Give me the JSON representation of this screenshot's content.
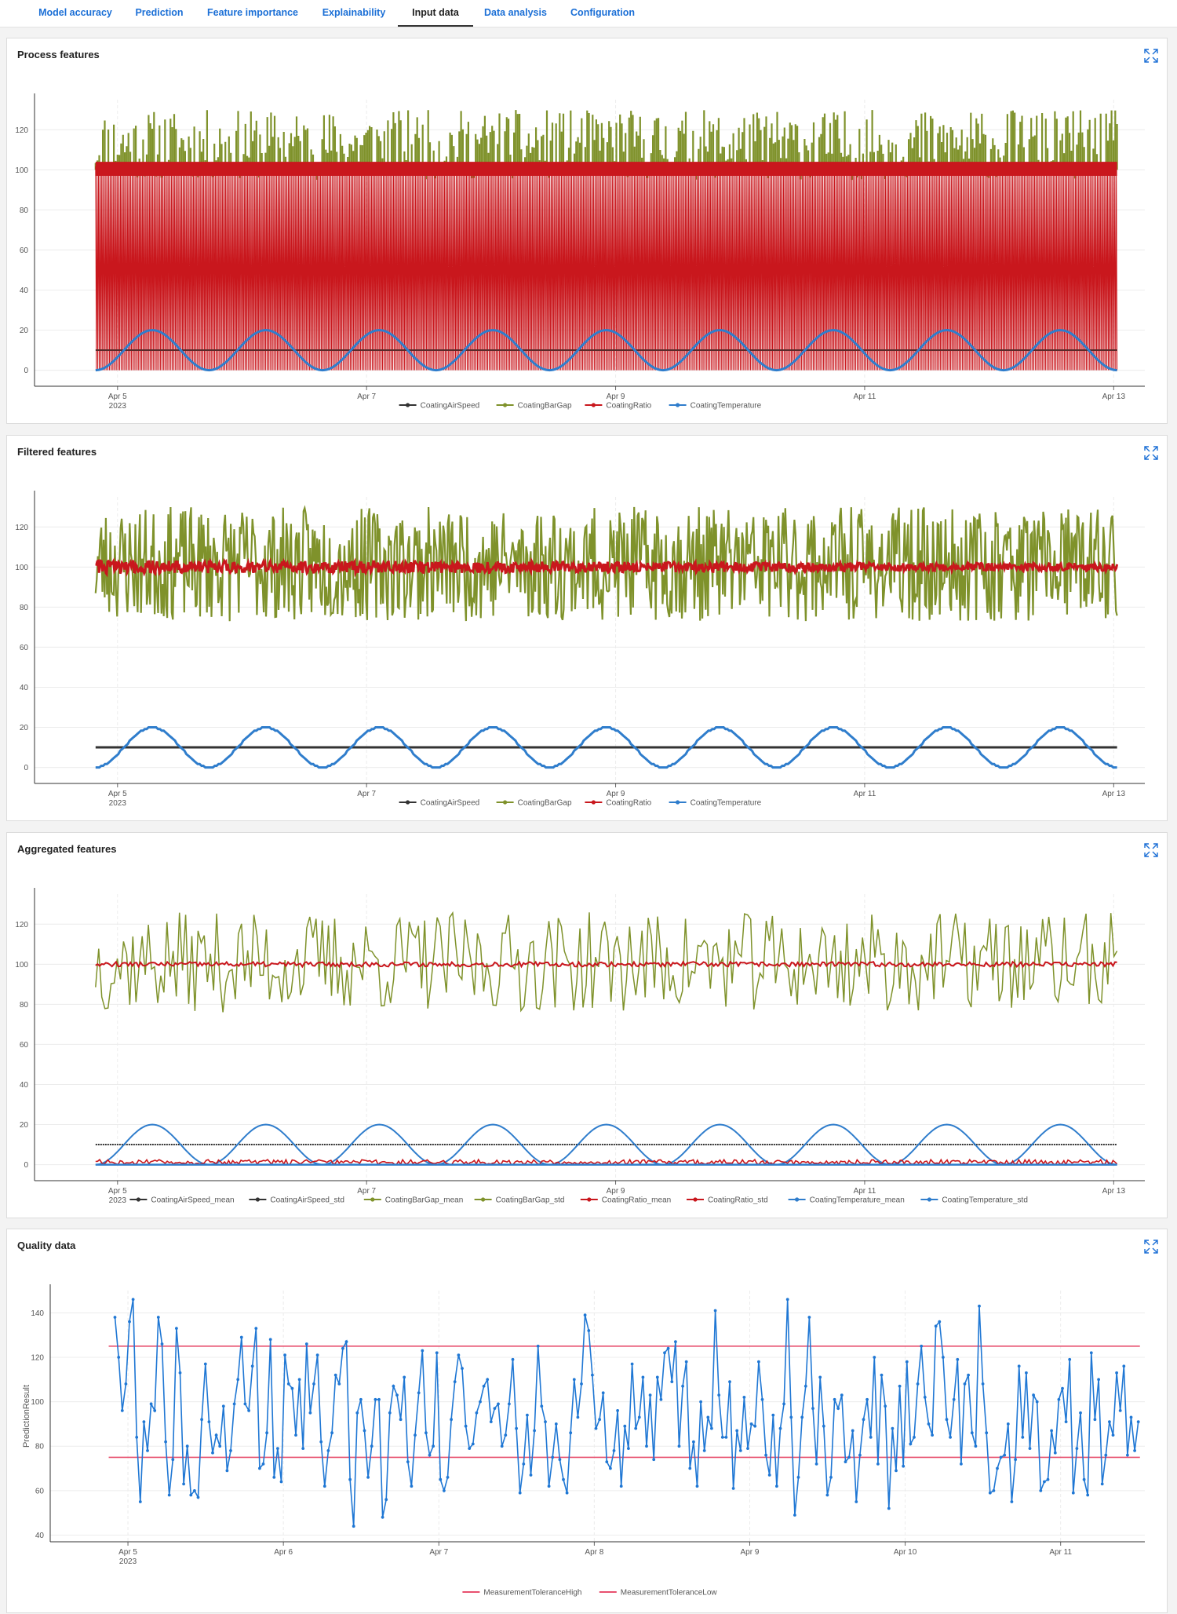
{
  "tabs": [
    {
      "label": "Model accuracy",
      "active": false
    },
    {
      "label": "Prediction",
      "active": false
    },
    {
      "label": "Feature importance",
      "active": false
    },
    {
      "label": "Explainability",
      "active": false
    },
    {
      "label": "Input data",
      "active": true
    },
    {
      "label": "Data analysis",
      "active": false
    },
    {
      "label": "Configuration",
      "active": false
    }
  ],
  "colors": {
    "CoatingAirSpeed": "#333333",
    "CoatingBarGap": "#7f922b",
    "CoatingRatio": "#c9171d",
    "CoatingTemperature": "#2f7dcc",
    "Prediction": "#1f77d4",
    "Tolerance": "#e8506f"
  },
  "panels": [
    {
      "title": "Process features",
      "expand_icon": "expand-icon"
    },
    {
      "title": "Filtered features",
      "expand_icon": "expand-icon"
    },
    {
      "title": "Aggregated features",
      "expand_icon": "expand-icon"
    },
    {
      "title": "Quality data",
      "expand_icon": "expand-icon"
    }
  ],
  "chart_data": [
    {
      "type": "line",
      "title": "Process features",
      "x_range": [
        "2023-04-04T08:00",
        "2023-04-13T06:00"
      ],
      "xticks": [
        "Apr 5",
        "Apr 7",
        "Apr 9",
        "Apr 11",
        "Apr 13"
      ],
      "xtick_sublabel": "2023",
      "ylim": [
        -8,
        135
      ],
      "yticks": [
        0,
        20,
        40,
        60,
        80,
        100,
        120
      ],
      "xlabel": "",
      "ylabel": "",
      "legend": [
        "CoatingAirSpeed",
        "CoatingBarGap",
        "CoatingRatio",
        "CoatingTemperature"
      ],
      "series": [
        {
          "name": "CoatingAirSpeed",
          "values": [
            10
          ]
        },
        {
          "name": "CoatingBarGap",
          "range": [
            75,
            130
          ]
        },
        {
          "name": "CoatingRatio",
          "range": [
            0,
            104
          ],
          "note": "oscillates between 0 and ~100"
        },
        {
          "name": "CoatingTemperature",
          "range": [
            0,
            20
          ],
          "cycles": 9
        }
      ]
    },
    {
      "type": "line",
      "title": "Filtered features",
      "x_range": [
        "2023-04-04T08:00",
        "2023-04-13T06:00"
      ],
      "xticks": [
        "Apr 5",
        "Apr 7",
        "Apr 9",
        "Apr 11",
        "Apr 13"
      ],
      "xtick_sublabel": "2023",
      "ylim": [
        -8,
        135
      ],
      "yticks": [
        0,
        20,
        40,
        60,
        80,
        100,
        120
      ],
      "xlabel": "",
      "ylabel": "",
      "legend": [
        "CoatingAirSpeed",
        "CoatingBarGap",
        "CoatingRatio",
        "CoatingTemperature"
      ],
      "series": [
        {
          "name": "CoatingAirSpeed",
          "values": [
            10
          ]
        },
        {
          "name": "CoatingBarGap",
          "range": [
            73,
            130
          ]
        },
        {
          "name": "CoatingRatio",
          "range": [
            96,
            104
          ]
        },
        {
          "name": "CoatingTemperature",
          "range": [
            0,
            20
          ],
          "cycles": 9
        }
      ]
    },
    {
      "type": "line",
      "title": "Aggregated features",
      "x_range": [
        "2023-04-04T08:00",
        "2023-04-13T06:00"
      ],
      "xticks": [
        "Apr 5",
        "Apr 7",
        "Apr 9",
        "Apr 11",
        "Apr 13"
      ],
      "xtick_sublabel": "2023",
      "ylim": [
        -8,
        135
      ],
      "yticks": [
        0,
        20,
        40,
        60,
        80,
        100,
        120
      ],
      "xlabel": "",
      "ylabel": "",
      "legend": [
        "CoatingAirSpeed_mean",
        "CoatingAirSpeed_std",
        "CoatingBarGap_mean",
        "CoatingBarGap_std",
        "CoatingRatio_mean",
        "CoatingRatio_std",
        "CoatingTemperature_mean",
        "CoatingTemperature_std"
      ],
      "series": [
        {
          "name": "CoatingAirSpeed_mean",
          "values": [
            10
          ]
        },
        {
          "name": "CoatingAirSpeed_std",
          "values": [
            0
          ]
        },
        {
          "name": "CoatingBarGap_mean",
          "range": [
            76,
            126
          ]
        },
        {
          "name": "CoatingBarGap_std",
          "range": [
            0,
            1
          ]
        },
        {
          "name": "CoatingRatio_mean",
          "range": [
            99,
            101
          ]
        },
        {
          "name": "CoatingRatio_std",
          "range": [
            0,
            3
          ]
        },
        {
          "name": "CoatingTemperature_mean",
          "range": [
            0,
            20
          ],
          "cycles": 9
        },
        {
          "name": "CoatingTemperature_std",
          "range": [
            0,
            1
          ]
        }
      ]
    },
    {
      "type": "line",
      "title": "Quality data",
      "x_range": [
        "2023-04-04T12:00",
        "2023-04-11T13:00"
      ],
      "xticks": [
        "Apr 5",
        "Apr 6",
        "Apr 7",
        "Apr 8",
        "Apr 9",
        "Apr 10",
        "Apr 11"
      ],
      "xtick_sublabel": "2023",
      "ylim": [
        37,
        150
      ],
      "yticks": [
        40,
        60,
        80,
        100,
        120,
        140
      ],
      "xlabel": "",
      "ylabel": "PredictionResult",
      "legend": [
        "MeasurementToleranceHigh",
        "MeasurementToleranceLow"
      ],
      "series": [
        {
          "name": "MeasurementToleranceHigh",
          "values": [
            125
          ]
        },
        {
          "name": "MeasurementToleranceLow",
          "values": [
            75
          ]
        },
        {
          "name": "PredictionResult",
          "x_start": "2023-04-04T22:00",
          "x_end": "2023-04-11T12:00",
          "values": [
            138,
            120,
            96,
            108,
            136,
            146,
            84,
            55,
            91,
            78,
            99,
            96,
            138,
            126,
            82,
            58,
            74,
            133,
            113,
            63,
            80,
            58,
            60,
            57,
            92,
            117,
            91,
            77,
            85,
            80,
            98,
            69,
            78,
            99,
            110,
            129,
            99,
            96,
            116,
            133,
            70,
            72,
            86,
            128,
            66,
            79,
            64,
            121,
            108,
            106,
            85,
            110,
            79,
            126,
            95,
            108,
            121,
            82,
            62,
            78,
            86,
            112,
            108,
            124,
            127,
            65,
            44,
            95,
            101,
            87,
            66,
            80,
            101,
            101,
            48,
            56,
            95,
            107,
            103,
            92,
            111,
            73,
            62,
            85,
            104,
            123,
            86,
            76,
            80,
            122,
            65,
            60,
            66,
            92,
            109,
            121,
            115,
            89,
            79,
            81,
            95,
            100,
            107,
            110,
            91,
            97,
            99,
            80,
            85,
            99,
            119,
            88,
            59,
            72,
            94,
            67,
            87,
            125,
            98,
            91,
            62,
            75,
            90,
            74,
            65,
            59,
            86,
            110,
            93,
            108,
            139,
            132,
            112,
            88,
            92,
            104,
            73,
            70,
            78,
            96,
            62,
            89,
            79,
            117,
            88,
            93,
            111,
            80,
            103,
            74,
            111,
            101,
            122,
            124,
            109,
            127,
            80,
            107,
            118,
            70,
            82,
            62,
            100,
            78,
            93,
            88,
            141,
            103,
            84,
            84,
            109,
            61,
            87,
            78,
            102,
            79,
            90,
            89,
            118,
            101,
            76,
            67,
            94,
            62,
            88,
            99,
            146,
            93,
            49,
            66,
            93,
            107,
            138,
            97,
            72,
            111,
            89,
            58,
            66,
            101,
            97,
            103,
            73,
            75,
            87,
            55,
            76,
            92,
            101,
            84,
            120,
            72,
            112,
            98,
            52,
            88,
            69,
            107,
            71,
            118,
            81,
            84,
            108,
            125,
            102,
            90,
            85,
            134,
            136,
            120,
            92,
            84,
            101,
            119,
            72,
            108,
            112,
            86,
            80,
            143,
            108,
            86,
            59,
            60,
            70,
            75,
            76,
            90,
            55,
            74,
            116,
            84,
            113,
            79,
            103,
            100,
            60,
            64,
            65,
            87,
            77,
            101,
            106,
            91,
            119,
            59,
            79,
            95,
            65,
            58,
            122,
            92,
            110,
            63,
            76,
            91,
            85,
            113,
            96,
            116,
            76,
            93,
            78,
            91
          ]
        }
      ]
    }
  ]
}
